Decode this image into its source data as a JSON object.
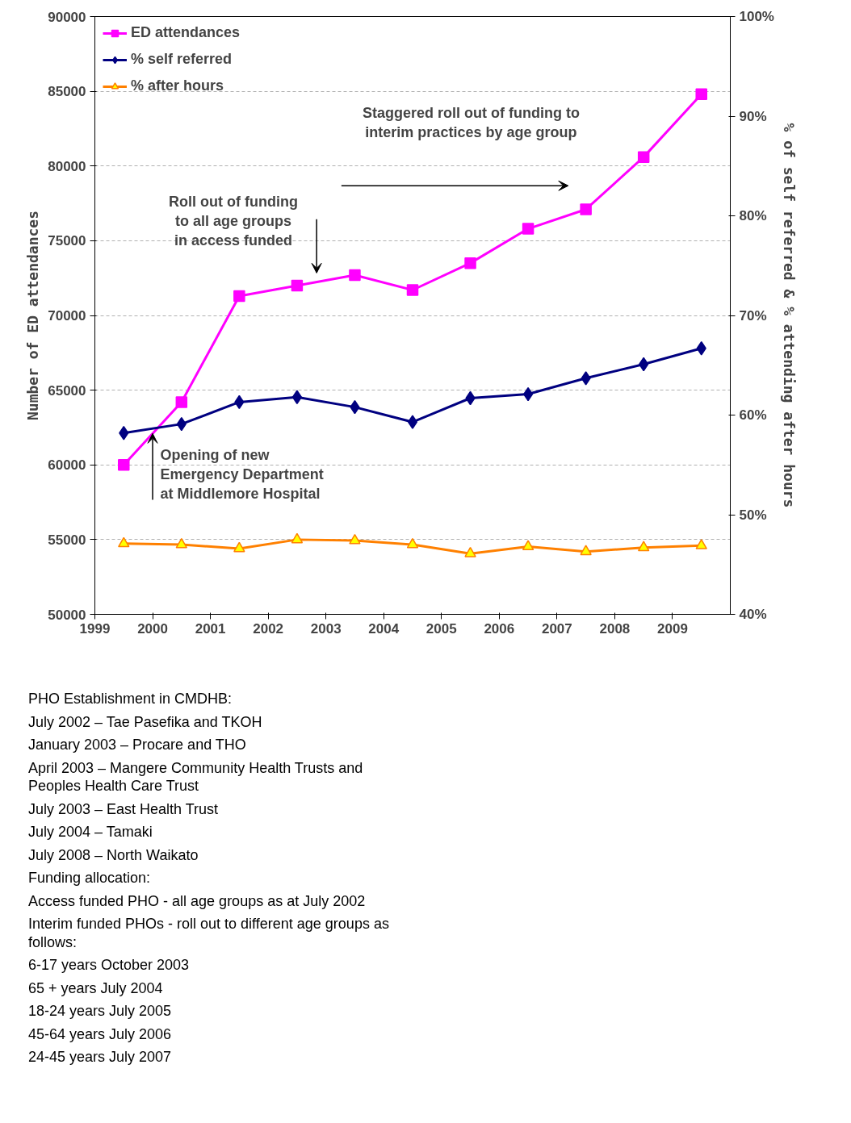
{
  "chart_data": {
    "type": "line",
    "x": [
      1999.5,
      2000.5,
      2001.5,
      2002.5,
      2003.5,
      2004.5,
      2005.5,
      2006.5,
      2007.5,
      2008.5,
      2009.5
    ],
    "series": [
      {
        "name": "ED attendances",
        "color": "#ff00ff",
        "marker": "square",
        "values": [
          60000,
          64200,
          71300,
          72000,
          72700,
          71700,
          73500,
          75800,
          77100,
          80600,
          84800
        ]
      },
      {
        "name": "% self referred",
        "color": "#000080",
        "marker": "diamond",
        "axis": "y2",
        "values": [
          58.2,
          59.1,
          61.3,
          61.8,
          60.8,
          59.3,
          61.7,
          62.1,
          63.7,
          65.1,
          66.7
        ]
      },
      {
        "name": "% after hours",
        "color": "#ff8000",
        "marker": "triangle",
        "axis": "y2",
        "values": [
          47.1,
          47.0,
          46.6,
          47.5,
          47.4,
          47.0,
          46.1,
          46.8,
          46.3,
          46.7,
          46.9
        ]
      }
    ],
    "xlim": [
      1999,
      2010
    ],
    "xticks": [
      1999,
      2000,
      2001,
      2002,
      2003,
      2004,
      2005,
      2006,
      2007,
      2008,
      2009
    ],
    "ylim": [
      50000,
      90000
    ],
    "yticks": [
      50000,
      55000,
      60000,
      65000,
      70000,
      75000,
      80000,
      85000,
      90000
    ],
    "y2lim": [
      40,
      100
    ],
    "y2ticks": [
      {
        "value": 40,
        "label": "40%"
      },
      {
        "value": 50,
        "label": "50%"
      },
      {
        "value": 60,
        "label": "60%"
      },
      {
        "value": 70,
        "label": "70%"
      },
      {
        "value": 80,
        "label": "80%"
      },
      {
        "value": 90,
        "label": "90%"
      },
      {
        "value": 100,
        "label": "100%"
      }
    ],
    "ylabel": "Number of ED attendances",
    "y2label": "% of self referred & % attending after hours",
    "grid": "y",
    "legend": "top left",
    "line_style": "solid",
    "annotations": [
      {
        "text": "Opening of new Emergency Department at Middlemore Hospital",
        "x": 2000,
        "y": 62100
      },
      "Roll out of funding to all age groups in access funded",
      "Staggered roll out of funding to interim practices by age group",
      "PHO Establishment in CMDHB:",
      "July 2002 – Tae Pasefika and TKOH",
      "January 2003 – Procare and THO",
      "April 2003 – Mangere Community Health Trusts and Peoples Health Care Trust",
      "July 2003 – East Health Trust",
      "July 2004 – Tamaki",
      "July 2008 – North Waikato",
      "Funding allocation:",
      "Access funded PHO - all age groups as at July 2002",
      "Interim funded PHOs - roll out to different age groups as follows:",
      "6-17 years October 2003",
      "65 + years July 2004",
      "18-24 years July 2005",
      "45-64 years July 2006",
      "24-45 years July 2007"
    ]
  }
}
